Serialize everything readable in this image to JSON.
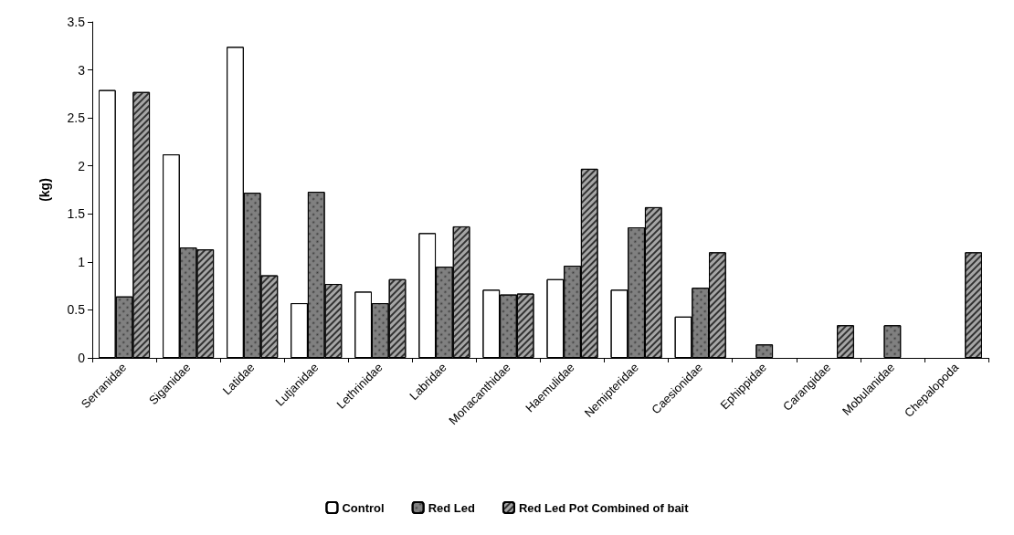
{
  "chart_data": {
    "type": "bar",
    "ylabel": "(kg)",
    "categories": [
      "Serranidae",
      "Siganidae",
      "Latidae",
      "Lutjanidae",
      "Lethrinidae",
      "Labridae",
      "Monacanthidae",
      "Haemulidae",
      "Nemipteridae",
      "Caesionidae",
      "Ephippidae",
      "Carangidae",
      "Mobulanidae",
      "Chepalopoda"
    ],
    "series": [
      {
        "name": "Control",
        "color": "#ffffff",
        "values": [
          2.79,
          2.12,
          3.24,
          0.57,
          0.69,
          1.3,
          0.71,
          0.82,
          0.71,
          0.43,
          0,
          0,
          0,
          0
        ]
      },
      {
        "name": "Red Led",
        "color": "#808080",
        "values": [
          0.64,
          1.15,
          1.72,
          1.73,
          0.57,
          0.95,
          0.66,
          0.96,
          1.36,
          0.73,
          0.14,
          0,
          0.34,
          0
        ]
      },
      {
        "name": "Red Led Pot Combined of bait",
        "color": "#a6a6a6",
        "values": [
          2.77,
          1.13,
          0.86,
          0.77,
          0.82,
          1.37,
          0.67,
          1.97,
          1.57,
          1.1,
          0,
          0.34,
          0,
          1.1
        ]
      }
    ],
    "ylim": [
      0,
      3.5
    ],
    "yticks": [
      0,
      0.5,
      1,
      1.5,
      2,
      2.5,
      3,
      3.5
    ],
    "grid": false,
    "legend": "bottom"
  }
}
